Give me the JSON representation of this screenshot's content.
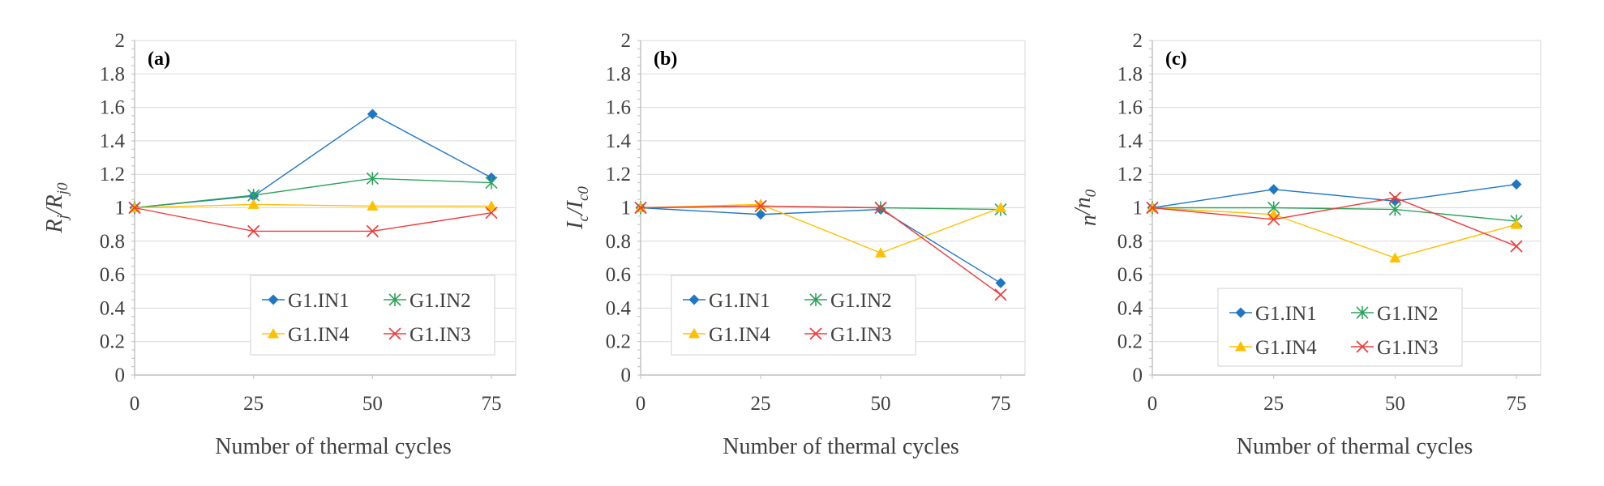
{
  "colors": {
    "G1.IN1": "#1f77c4",
    "G1.IN2": "#2ca35a",
    "G1.IN4": "#ffc000",
    "G1.IN3": "#ee3b3b",
    "axis": "#bfbfbf",
    "grid": "#d9d9d9",
    "text": "#404040"
  },
  "markers": {
    "G1.IN1": "diamond",
    "G1.IN2": "asterisk",
    "G1.IN4": "triangle",
    "G1.IN3": "x"
  },
  "chart_data": [
    {
      "type": "line",
      "panel_label": "(a)",
      "ylabel": {
        "main": "R",
        "main_sub": "j",
        "slash": "/",
        "denom": "R",
        "denom_sub": "j0"
      },
      "xlabel": "Number of thermal cycles",
      "x": [
        0,
        25,
        50,
        75
      ],
      "x_ticks": [
        "0",
        "25",
        "50",
        "75"
      ],
      "ylim": [
        0,
        2
      ],
      "y_ticks": [
        "0",
        "0.2",
        "0.4",
        "0.6",
        "0.8",
        "1",
        "1.2",
        "1.4",
        "1.6",
        "1.8",
        "2"
      ],
      "legend_position": "bottom-right",
      "legend_entries": [
        "G1.IN1",
        "G1.IN2",
        "G1.IN4",
        "G1.IN3"
      ],
      "series": [
        {
          "name": "G1.IN1",
          "values": [
            1.0,
            1.07,
            1.56,
            1.18
          ]
        },
        {
          "name": "G1.IN2",
          "values": [
            1.0,
            1.075,
            1.175,
            1.15
          ]
        },
        {
          "name": "G1.IN4",
          "values": [
            1.0,
            1.02,
            1.01,
            1.01
          ]
        },
        {
          "name": "G1.IN3",
          "values": [
            1.0,
            0.86,
            0.86,
            0.97
          ]
        }
      ]
    },
    {
      "type": "line",
      "panel_label": "(b)",
      "ylabel": {
        "main": "I",
        "main_sub": "c",
        "slash": "/",
        "denom": "I",
        "denom_sub": "c0"
      },
      "xlabel": "Number of thermal cycles",
      "x": [
        0,
        25,
        50,
        75
      ],
      "x_ticks": [
        "0",
        "25",
        "50",
        "75"
      ],
      "ylim": [
        0,
        2
      ],
      "y_ticks": [
        "0",
        "0.2",
        "0.4",
        "0.6",
        "0.8",
        "1",
        "1.2",
        "1.4",
        "1.6",
        "1.8",
        "2"
      ],
      "legend_position": "bottom-left",
      "legend_entries": [
        "G1.IN1",
        "G1.IN2",
        "G1.IN4",
        "G1.IN3"
      ],
      "series": [
        {
          "name": "G1.IN1",
          "values": [
            1.0,
            0.96,
            0.99,
            0.55
          ]
        },
        {
          "name": "G1.IN2",
          "values": [
            1.0,
            1.01,
            1.0,
            0.99
          ]
        },
        {
          "name": "G1.IN4",
          "values": [
            1.0,
            1.02,
            0.73,
            1.0
          ]
        },
        {
          "name": "G1.IN3",
          "values": [
            1.0,
            1.01,
            1.0,
            0.48
          ]
        }
      ]
    },
    {
      "type": "line",
      "panel_label": "(c)",
      "ylabel": {
        "main": "n",
        "main_sub": "",
        "slash": "/",
        "denom": "n",
        "denom_sub": "0"
      },
      "xlabel": "Number of thermal cycles",
      "x": [
        0,
        25,
        50,
        75
      ],
      "x_ticks": [
        "0",
        "25",
        "50",
        "75"
      ],
      "ylim": [
        0,
        2
      ],
      "y_ticks": [
        "0",
        "0.2",
        "0.4",
        "0.6",
        "0.8",
        "1",
        "1.2",
        "1.4",
        "1.6",
        "1.8",
        "2"
      ],
      "legend_position": "bottom-center",
      "legend_entries": [
        "G1.IN1",
        "G1.IN2",
        "G1.IN4",
        "G1.IN3"
      ],
      "series": [
        {
          "name": "G1.IN1",
          "values": [
            1.0,
            1.11,
            1.04,
            1.14
          ]
        },
        {
          "name": "G1.IN2",
          "values": [
            1.0,
            1.0,
            0.99,
            0.92
          ]
        },
        {
          "name": "G1.IN4",
          "values": [
            1.0,
            0.96,
            0.7,
            0.9
          ]
        },
        {
          "name": "G1.IN3",
          "values": [
            1.0,
            0.93,
            1.06,
            0.77
          ]
        }
      ]
    }
  ]
}
